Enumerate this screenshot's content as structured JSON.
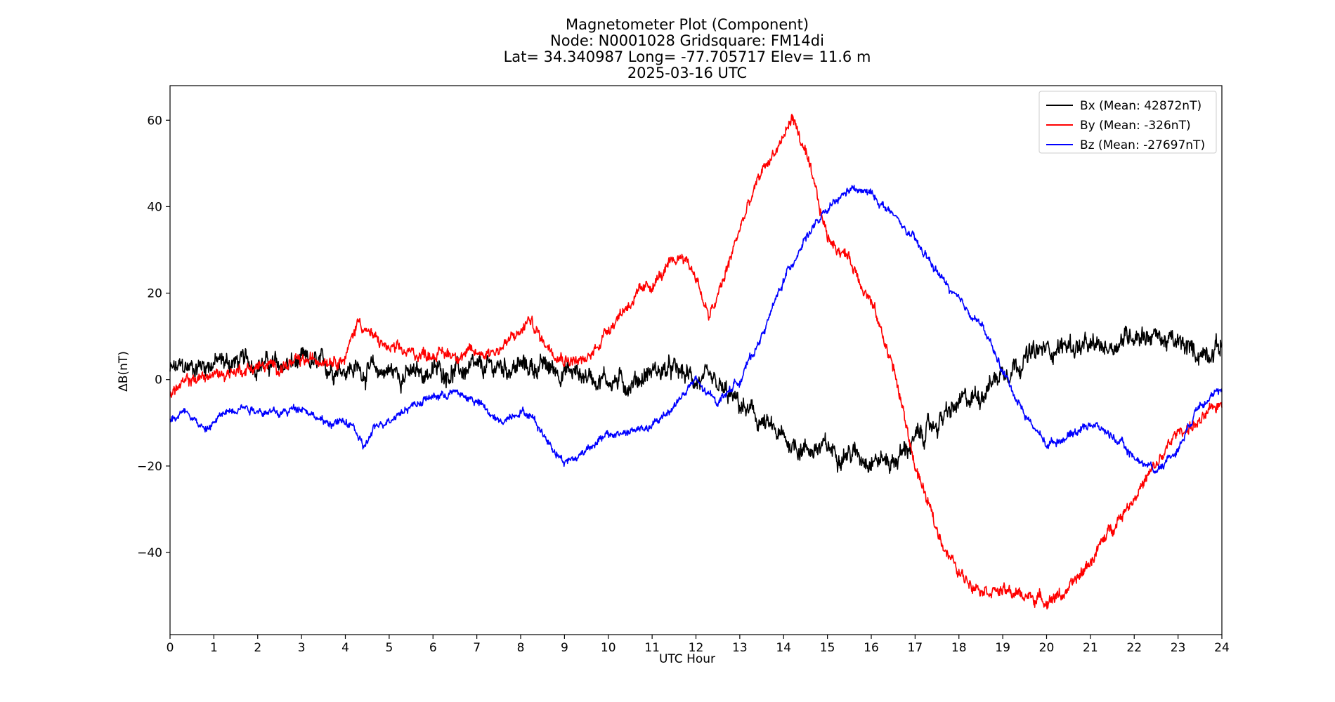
{
  "chart_data": {
    "type": "line",
    "title_lines": [
      "Magnetometer Plot (Component)",
      "Node:  N0001028     Gridsquare:  FM14di",
      "Lat= 34.340987    Long= -77.705717    Elev= 11.6 m",
      "2025-03-16  UTC"
    ],
    "xlabel": "UTC Hour",
    "ylabel": "ΔB(nT)",
    "xlim": [
      0,
      24
    ],
    "ylim": [
      -59,
      68
    ],
    "xticks": [
      0,
      1,
      2,
      3,
      4,
      5,
      6,
      7,
      8,
      9,
      10,
      11,
      12,
      13,
      14,
      15,
      16,
      17,
      18,
      19,
      20,
      21,
      22,
      23,
      24
    ],
    "yticks": [
      -40,
      -20,
      0,
      20,
      40,
      60
    ],
    "ytick_labels": [
      "−40",
      "−20",
      "0",
      "20",
      "40",
      "60"
    ],
    "grid": false,
    "legend_position": "top-right",
    "series": [
      {
        "name": "Bx (Mean: 42872nT)",
        "color": "#000000",
        "noise": 2.5,
        "x": [
          0,
          0.5,
          1,
          1.5,
          2,
          2.5,
          3,
          3.5,
          4,
          4.5,
          5,
          5.5,
          6,
          6.5,
          7,
          7.5,
          8,
          8.5,
          9,
          9.5,
          10,
          10.5,
          11,
          11.5,
          12,
          12.5,
          13,
          13.5,
          14,
          14.5,
          15,
          15.5,
          16,
          16.5,
          17,
          17.5,
          18,
          18.5,
          19,
          19.5,
          20,
          20.5,
          21,
          21.5,
          22,
          22.5,
          23,
          23.5,
          24
        ],
        "y": [
          2,
          3,
          4,
          4,
          4,
          3,
          4,
          3,
          3,
          2,
          2,
          1,
          2,
          2,
          2,
          3,
          3,
          3,
          2,
          1,
          0,
          -1,
          2,
          2,
          0,
          -2,
          -6,
          -10,
          -14,
          -16,
          -16,
          -17,
          -18,
          -19,
          -14,
          -10,
          -6,
          -3,
          2,
          5,
          7,
          8,
          7,
          8,
          11,
          10,
          8,
          6,
          8
        ]
      },
      {
        "name": "By (Mean: -326nT)",
        "color": "#ff0000",
        "noise": 1.5,
        "x": [
          0,
          0.5,
          1,
          1.5,
          2,
          2.5,
          3,
          3.5,
          4,
          4.3,
          4.6,
          5,
          5.5,
          6,
          6.5,
          7,
          7.5,
          8,
          8.2,
          8.5,
          9,
          9.5,
          10,
          10.5,
          11,
          11.5,
          11.7,
          12,
          12.3,
          12.6,
          13,
          13.5,
          14,
          14.2,
          14.5,
          15,
          15.5,
          16,
          16.5,
          17,
          17.5,
          18,
          18.5,
          19,
          19.5,
          20,
          20.5,
          21,
          21.5,
          22,
          22.5,
          23,
          23.5,
          24
        ],
        "y": [
          -3,
          0,
          1,
          2,
          3,
          3,
          4,
          5,
          5,
          14,
          10,
          7,
          6,
          6,
          6,
          6,
          7,
          11,
          14,
          9,
          5,
          4,
          12,
          18,
          22,
          27,
          29,
          24,
          14,
          22,
          35,
          48,
          56,
          61,
          52,
          33,
          28,
          18,
          3,
          -20,
          -35,
          -45,
          -48,
          -49,
          -50,
          -51,
          -49,
          -42,
          -34,
          -27,
          -20,
          -12,
          -10,
          -5
        ]
      },
      {
        "name": "Bz (Mean: -27697nT)",
        "color": "#0000ff",
        "noise": 1.0,
        "x": [
          0,
          0.4,
          0.8,
          1.2,
          1.6,
          2,
          2.5,
          3,
          3.5,
          4,
          4.2,
          4.4,
          4.7,
          5,
          5.5,
          6,
          6.5,
          7,
          7.5,
          8,
          8.3,
          8.6,
          9,
          9.3,
          9.6,
          10,
          10.5,
          11,
          11.5,
          12,
          12.2,
          12.5,
          13,
          13.5,
          14,
          14.5,
          15,
          15.5,
          16,
          16.5,
          17,
          17.5,
          18,
          18.5,
          19,
          19.5,
          20,
          20.5,
          21,
          21.5,
          22,
          22.5,
          23,
          23.5,
          24
        ],
        "y": [
          -9,
          -7,
          -12,
          -8,
          -6,
          -7,
          -8,
          -6,
          -10,
          -10,
          -11,
          -16,
          -11,
          -9,
          -6,
          -4,
          -3,
          -5,
          -10,
          -7,
          -9,
          -14,
          -19,
          -18,
          -15,
          -13,
          -12,
          -11,
          -6,
          0,
          -3,
          -5,
          0,
          10,
          23,
          33,
          39,
          44,
          43,
          38,
          32,
          25,
          18,
          13,
          2,
          -8,
          -15,
          -13,
          -10,
          -13,
          -18,
          -21,
          -16,
          -5,
          -3
        ]
      }
    ]
  }
}
